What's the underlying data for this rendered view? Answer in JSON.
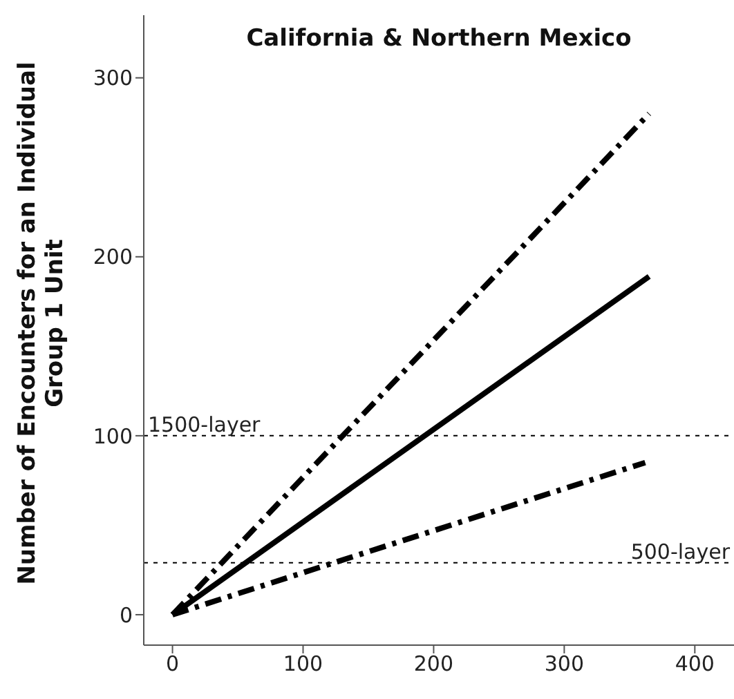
{
  "chart_data": {
    "type": "line",
    "title": "California & Northern Mexico",
    "ylabel": "Number of Encounters for an Individual Group 1 Unit",
    "xlim": [
      -22,
      430
    ],
    "xticks": [
      0,
      100,
      200,
      300,
      400
    ],
    "ylim": [
      -17,
      335
    ],
    "yticks": [
      0,
      100,
      200,
      300
    ],
    "grid": false,
    "marker": "none",
    "series": [
      {
        "color": "#000000",
        "line_style": "dashed",
        "x": [
          0,
          365
        ],
        "values": [
          0,
          280
        ]
      },
      {
        "color": "#000000",
        "line_style": "solid",
        "x": [
          0,
          365
        ],
        "values": [
          0,
          189
        ]
      },
      {
        "color": "#000000",
        "line_style": "dashed",
        "x": [
          0,
          362
        ],
        "values": [
          0,
          85
        ]
      }
    ],
    "ref_lines": [
      {
        "axis": "y",
        "value": 100,
        "label": "1500-layer",
        "line_style": "dotted",
        "color": "#000000"
      },
      {
        "axis": "y",
        "value": 29,
        "label": "500-layer",
        "line_style": "dotted",
        "color": "#000000"
      }
    ]
  }
}
